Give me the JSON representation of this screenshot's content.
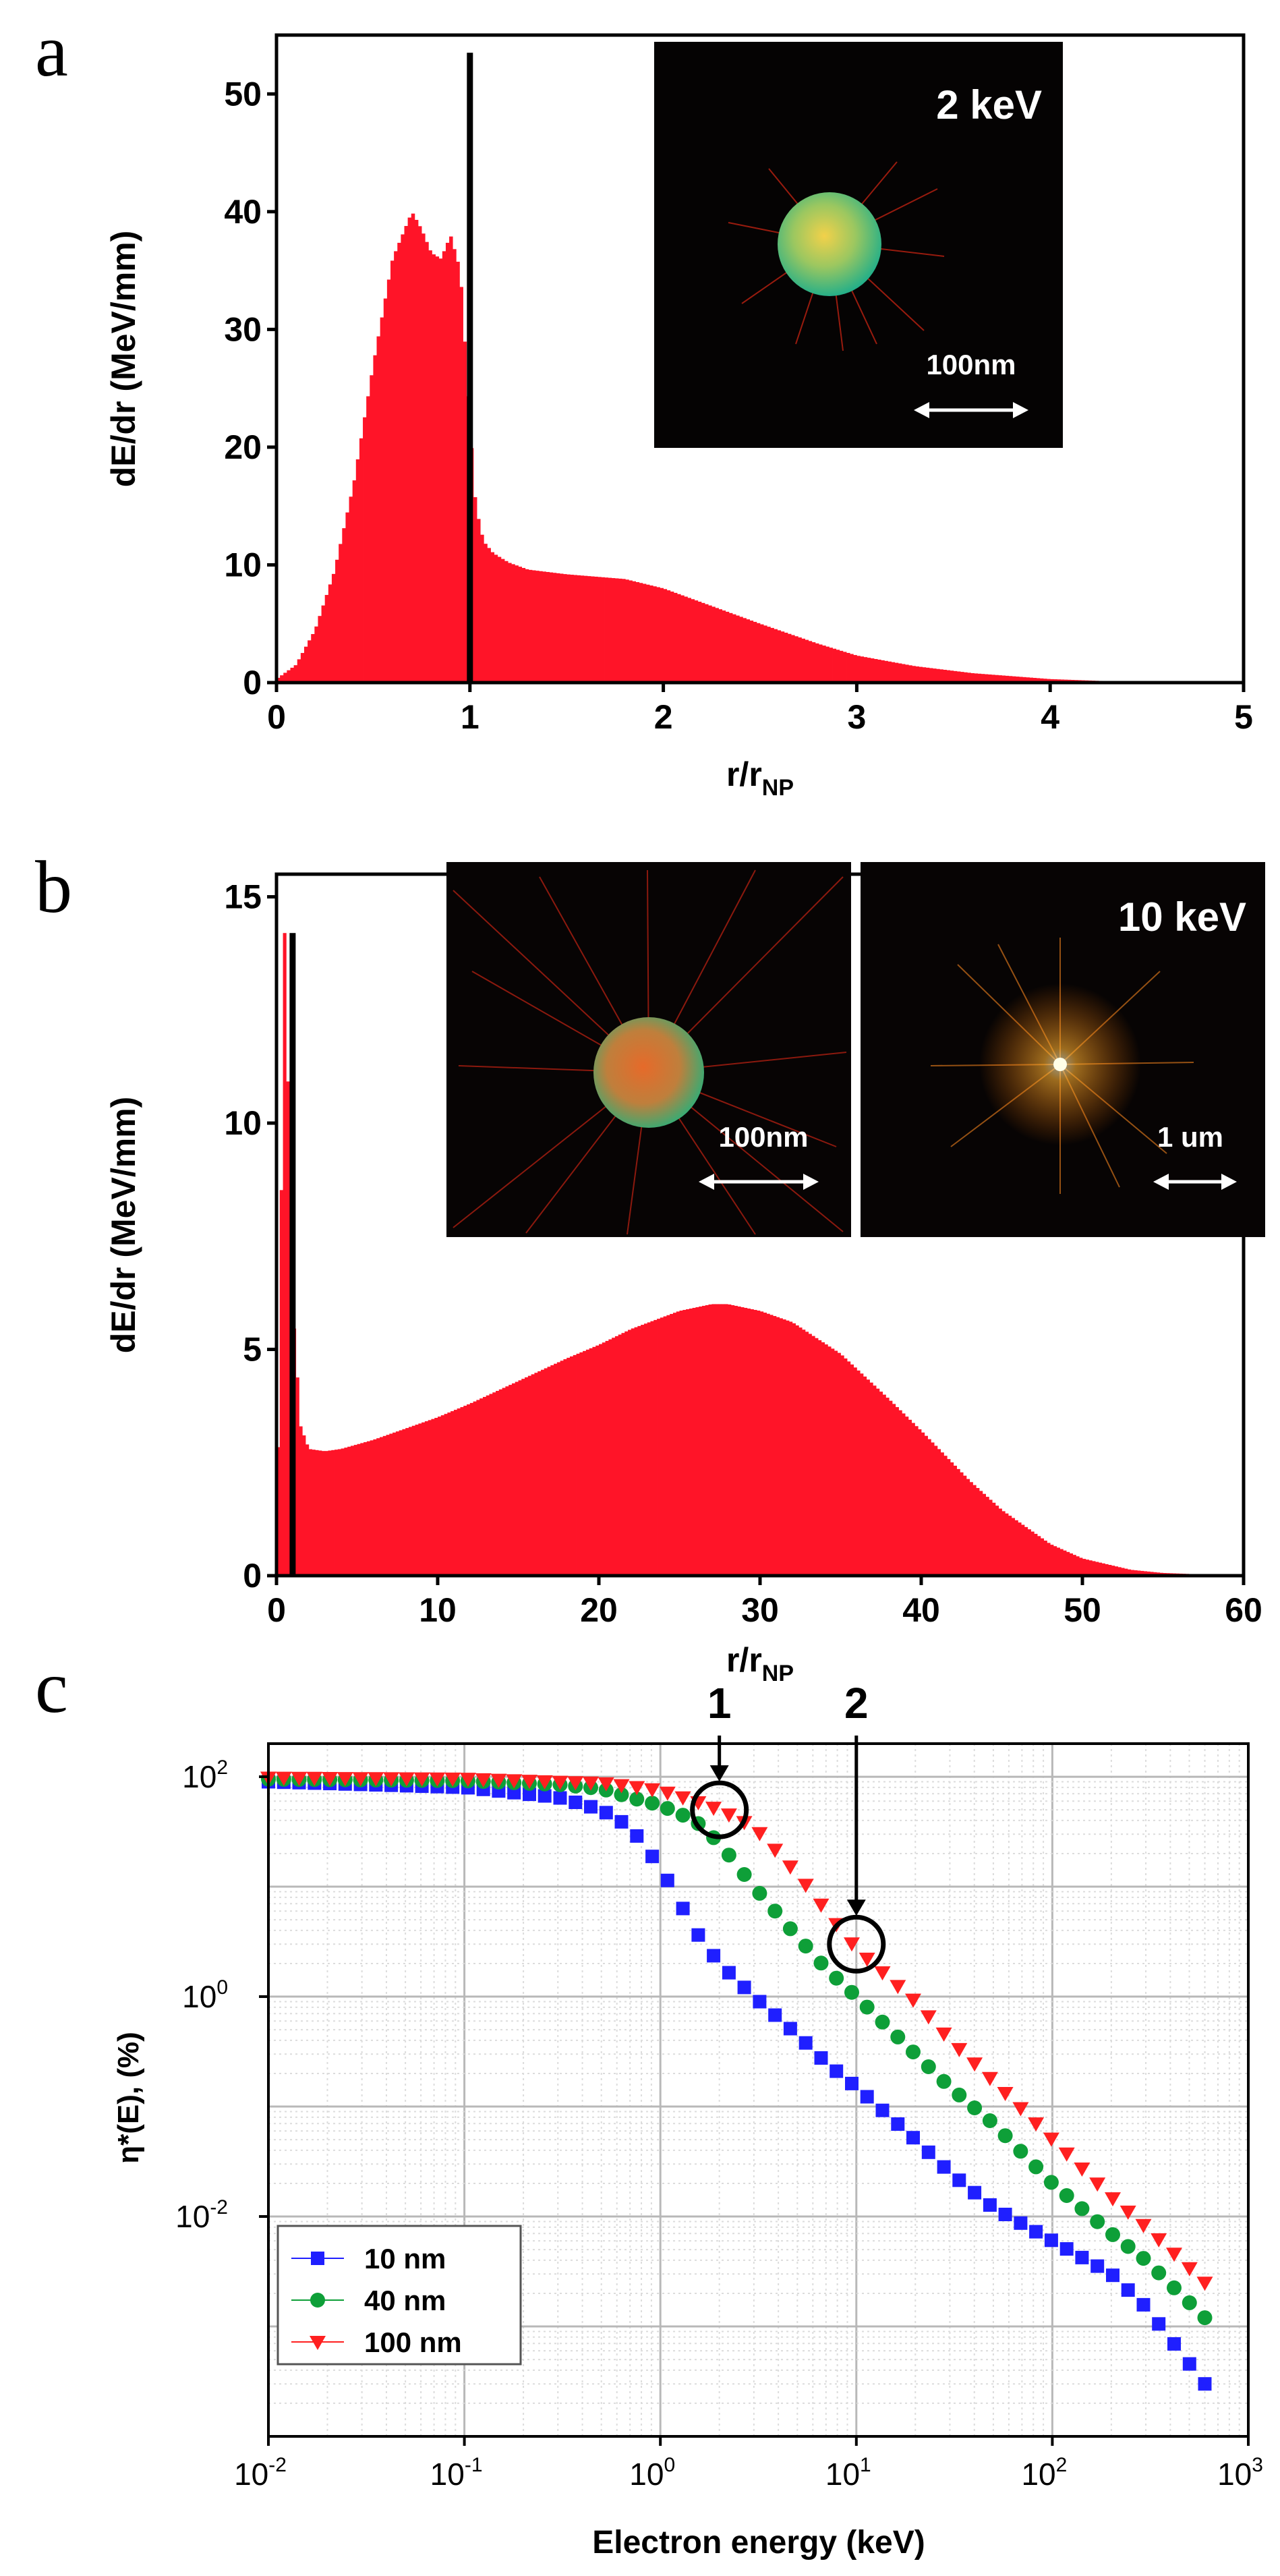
{
  "panel_labels": [
    "a",
    "b",
    "c"
  ],
  "chart_data": [
    {
      "panel": "a",
      "type": "bar",
      "xlabel_main": "r/r",
      "xlabel_sub": "NP",
      "ylabel": "dE/dr (MeV/mm)",
      "xlim": [
        0,
        5
      ],
      "ylim": [
        0,
        55
      ],
      "xticks": [
        "0",
        "1",
        "2",
        "3",
        "4",
        "5"
      ],
      "yticks": [
        "0",
        "10",
        "20",
        "30",
        "40",
        "50"
      ],
      "x": [
        0.0,
        0.1,
        0.2,
        0.3,
        0.4,
        0.5,
        0.6,
        0.7,
        0.75,
        0.8,
        0.85,
        0.9,
        0.95,
        1.0,
        1.03,
        1.07,
        1.12,
        1.2,
        1.3,
        1.5,
        1.8,
        2.0,
        2.2,
        2.5,
        2.8,
        3.0,
        3.3,
        3.6,
        4.0,
        4.3,
        4.6,
        5.0
      ],
      "values": [
        0.3,
        1.5,
        4.5,
        9.5,
        17,
        27,
        36,
        40,
        38.5,
        36.5,
        36,
        38,
        35,
        22,
        15,
        12,
        11,
        10.2,
        9.6,
        9.2,
        8.8,
        8,
        6.8,
        5,
        3.3,
        2.3,
        1.4,
        0.8,
        0.3,
        0.12,
        0.05,
        0.02
      ],
      "boundary_line": {
        "x": 1,
        "height": 53.5
      },
      "bar_color": "#ff1428",
      "inset_labels": {
        "energy": "2 keV",
        "scale": "100nm"
      }
    },
    {
      "panel": "b",
      "type": "bar",
      "xlabel_main": "r/r",
      "xlabel_sub": "NP",
      "ylabel": "dE/dr (MeV/mm)",
      "xlim": [
        0,
        60
      ],
      "ylim": [
        0,
        15.5
      ],
      "xticks": [
        "0",
        "10",
        "20",
        "30",
        "40",
        "50",
        "60"
      ],
      "yticks": [
        "0",
        "5",
        "10",
        "15"
      ],
      "x": [
        0,
        0.5,
        1.0,
        1.5,
        2,
        3,
        4,
        6,
        8,
        10,
        12,
        15,
        18,
        20,
        22,
        25,
        27,
        28,
        30,
        32,
        35,
        38,
        40,
        43,
        45,
        48,
        50,
        53,
        55,
        58,
        60
      ],
      "values": [
        0,
        14.2,
        6,
        3.3,
        2.8,
        2.75,
        2.8,
        3.0,
        3.25,
        3.5,
        3.8,
        4.3,
        4.8,
        5.1,
        5.45,
        5.85,
        6.0,
        6.0,
        5.85,
        5.6,
        4.9,
        3.9,
        3.2,
        2.1,
        1.45,
        0.7,
        0.38,
        0.13,
        0.06,
        0.02,
        0.01
      ],
      "boundary_line": {
        "x": 1,
        "height": 14.2
      },
      "bar_color": "#ff1428",
      "inset_labels": {
        "energy": "10 keV",
        "scale_left": "100nm",
        "scale_right": "1 um"
      }
    },
    {
      "panel": "c",
      "type": "scatter",
      "xscale": "log",
      "yscale": "log",
      "xlabel": "Electron energy (keV)",
      "ylabel": "η*(E), (%)",
      "xlim": [
        0.01,
        1000
      ],
      "ylim": [
        0.0001,
        200
      ],
      "xtick_exponents": [
        "-2",
        "-1",
        "0",
        "1",
        "2",
        "3"
      ],
      "ytick_exponents": [
        "2",
        "0",
        "-2"
      ],
      "tick_base": "10",
      "legend_position": "bottom-left",
      "series": [
        {
          "name": "10 nm",
          "color": "#1f1fff",
          "marker": "square",
          "x": [
            0.01,
            0.1,
            0.3,
            0.5,
            0.7,
            1.0,
            1.5,
            2,
            3,
            5,
            7,
            10,
            20,
            30,
            50,
            100,
            200,
            300,
            600
          ],
          "y": [
            90,
            80,
            65,
            50,
            35,
            15,
            4,
            2.0,
            1.0,
            0.45,
            0.25,
            0.15,
            0.05,
            0.025,
            0.012,
            0.006,
            0.003,
            0.0015,
            0.0003
          ]
        },
        {
          "name": "40 nm",
          "color": "#0e9f38",
          "marker": "circle",
          "x": [
            0.01,
            0.1,
            0.3,
            0.5,
            0.7,
            1.0,
            1.5,
            2,
            3,
            5,
            7,
            10,
            20,
            30,
            50,
            100,
            200,
            300,
            600
          ],
          "y": [
            95,
            92,
            85,
            78,
            65,
            55,
            40,
            25,
            10,
            3.5,
            1.8,
            1.0,
            0.3,
            0.15,
            0.07,
            0.02,
            0.007,
            0.004,
            0.0012
          ]
        },
        {
          "name": "100 nm",
          "color": "#ff2020",
          "marker": "triangle-down",
          "x": [
            0.01,
            0.1,
            0.3,
            0.5,
            0.7,
            1.0,
            1.5,
            2,
            3,
            5,
            7,
            10,
            20,
            30,
            50,
            100,
            200,
            300,
            600
          ],
          "y": [
            98,
            96,
            90,
            88,
            82,
            75,
            60,
            50,
            35,
            13,
            6,
            2.7,
            0.9,
            0.4,
            0.17,
            0.05,
            0.015,
            0.008,
            0.0025
          ]
        }
      ],
      "annotations": [
        {
          "label": "1",
          "x": 2,
          "y": 50
        },
        {
          "label": "2",
          "x": 10,
          "y": 3
        }
      ]
    }
  ]
}
